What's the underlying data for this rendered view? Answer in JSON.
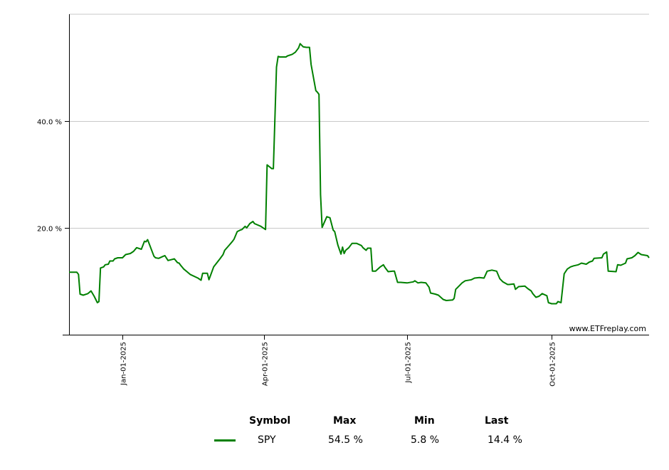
{
  "chart_data": {
    "type": "line",
    "title": "",
    "xlabel": "",
    "ylabel": "",
    "ylim": [
      0,
      60
    ],
    "xlim": [
      "2024-11-28",
      "2025-12-02"
    ],
    "grid": true,
    "y_ticks": [
      {
        "value": 20,
        "label": "20.0 %"
      },
      {
        "value": 40,
        "label": "40.0 %"
      }
    ],
    "x_ticks": [
      {
        "date": "2025-01-01",
        "label": "Jan-01-2025"
      },
      {
        "date": "2025-04-01",
        "label": "Apr-01-2025"
      },
      {
        "date": "2025-07-01",
        "label": "Jul-01-2025"
      },
      {
        "date": "2025-10-01",
        "label": "Oct-01-2025"
      }
    ],
    "watermark": "www.ETFreplay.com",
    "series": [
      {
        "name": "SPY",
        "color": "#008000",
        "points": [
          [
            "2024-11-28",
            11.7
          ],
          [
            "2024-12-03",
            11.7
          ],
          [
            "2024-12-04",
            11.3
          ],
          [
            "2024-12-05",
            7.6
          ],
          [
            "2024-12-07",
            7.4
          ],
          [
            "2024-12-10",
            7.7
          ],
          [
            "2024-12-12",
            8.2
          ],
          [
            "2024-12-14",
            7.2
          ],
          [
            "2024-12-16",
            6.0
          ],
          [
            "2024-12-17",
            6.2
          ],
          [
            "2024-12-18",
            12.5
          ],
          [
            "2024-12-20",
            12.7
          ],
          [
            "2024-12-21",
            13.1
          ],
          [
            "2024-12-23",
            13.2
          ],
          [
            "2024-12-24",
            13.8
          ],
          [
            "2024-12-26",
            13.8
          ],
          [
            "2024-12-27",
            14.2
          ],
          [
            "2024-12-29",
            14.4
          ],
          [
            "2025-01-01",
            14.4
          ],
          [
            "2025-01-03",
            15.0
          ],
          [
            "2025-01-06",
            15.2
          ],
          [
            "2025-01-08",
            15.6
          ],
          [
            "2025-01-10",
            16.3
          ],
          [
            "2025-01-13",
            16.0
          ],
          [
            "2025-01-15",
            17.5
          ],
          [
            "2025-01-16",
            17.4
          ],
          [
            "2025-01-17",
            17.8
          ],
          [
            "2025-01-21",
            14.7
          ],
          [
            "2025-01-22",
            14.4
          ],
          [
            "2025-01-24",
            14.3
          ],
          [
            "2025-01-27",
            14.7
          ],
          [
            "2025-01-28",
            14.8
          ],
          [
            "2025-01-30",
            13.9
          ],
          [
            "2025-02-03",
            14.2
          ],
          [
            "2025-02-05",
            13.5
          ],
          [
            "2025-02-06",
            13.4
          ],
          [
            "2025-02-07",
            13.0
          ],
          [
            "2025-02-09",
            12.3
          ],
          [
            "2025-02-11",
            11.8
          ],
          [
            "2025-02-13",
            11.3
          ],
          [
            "2025-02-18",
            10.6
          ],
          [
            "2025-02-20",
            10.2
          ],
          [
            "2025-02-21",
            11.5
          ],
          [
            "2025-02-24",
            11.5
          ],
          [
            "2025-02-25",
            10.3
          ],
          [
            "2025-02-28",
            12.7
          ],
          [
            "2025-03-04",
            14.2
          ],
          [
            "2025-03-06",
            15.0
          ],
          [
            "2025-03-07",
            15.8
          ],
          [
            "2025-03-10",
            16.8
          ],
          [
            "2025-03-12",
            17.5
          ],
          [
            "2025-03-13",
            17.9
          ],
          [
            "2025-03-15",
            19.3
          ],
          [
            "2025-03-17",
            19.6
          ],
          [
            "2025-03-18",
            19.7
          ],
          [
            "2025-03-20",
            20.3
          ],
          [
            "2025-03-21",
            20.0
          ],
          [
            "2025-03-23",
            20.8
          ],
          [
            "2025-03-25",
            21.2
          ],
          [
            "2025-03-26",
            20.8
          ],
          [
            "2025-03-30",
            20.3
          ],
          [
            "2025-04-02",
            19.7
          ],
          [
            "2025-04-03",
            31.8
          ],
          [
            "2025-04-06",
            31.1
          ],
          [
            "2025-04-07",
            31.1
          ],
          [
            "2025-04-09",
            50.1
          ],
          [
            "2025-04-10",
            52.1
          ],
          [
            "2025-04-11",
            52.0
          ],
          [
            "2025-04-14",
            52.0
          ],
          [
            "2025-04-15",
            52.0
          ],
          [
            "2025-04-16",
            52.2
          ],
          [
            "2025-04-19",
            52.5
          ],
          [
            "2025-04-21",
            52.9
          ],
          [
            "2025-04-23",
            53.7
          ],
          [
            "2025-04-24",
            54.5
          ],
          [
            "2025-04-26",
            53.9
          ],
          [
            "2025-04-28",
            53.8
          ],
          [
            "2025-04-30",
            53.8
          ],
          [
            "2025-05-01",
            50.6
          ],
          [
            "2025-05-04",
            45.7
          ],
          [
            "2025-05-05",
            45.4
          ],
          [
            "2025-05-06",
            45.0
          ],
          [
            "2025-05-07",
            26.2
          ],
          [
            "2025-05-08",
            20.1
          ],
          [
            "2025-05-11",
            22.1
          ],
          [
            "2025-05-13",
            21.9
          ],
          [
            "2025-05-15",
            19.6
          ],
          [
            "2025-05-16",
            19.3
          ],
          [
            "2025-05-18",
            16.8
          ],
          [
            "2025-05-20",
            15.1
          ],
          [
            "2025-05-21",
            16.4
          ],
          [
            "2025-05-22",
            15.2
          ],
          [
            "2025-05-23",
            15.8
          ],
          [
            "2025-05-25",
            16.3
          ],
          [
            "2025-05-27",
            17.1
          ],
          [
            "2025-05-30",
            17.1
          ],
          [
            "2025-06-02",
            16.7
          ],
          [
            "2025-06-03",
            16.3
          ],
          [
            "2025-06-05",
            15.8
          ],
          [
            "2025-06-06",
            16.2
          ],
          [
            "2025-06-08",
            16.2
          ],
          [
            "2025-06-09",
            11.9
          ],
          [
            "2025-06-11",
            11.9
          ],
          [
            "2025-06-14",
            12.7
          ],
          [
            "2025-06-16",
            13.1
          ],
          [
            "2025-06-17",
            12.6
          ],
          [
            "2025-06-19",
            11.8
          ],
          [
            "2025-06-22",
            11.9
          ],
          [
            "2025-06-23",
            11.9
          ],
          [
            "2025-06-25",
            9.8
          ],
          [
            "2025-06-27",
            9.8
          ],
          [
            "2025-07-01",
            9.7
          ],
          [
            "2025-07-05",
            9.9
          ],
          [
            "2025-07-06",
            10.1
          ],
          [
            "2025-07-08",
            9.7
          ],
          [
            "2025-07-10",
            9.8
          ],
          [
            "2025-07-13",
            9.7
          ],
          [
            "2025-07-15",
            8.9
          ],
          [
            "2025-07-16",
            7.8
          ],
          [
            "2025-07-19",
            7.6
          ],
          [
            "2025-07-21",
            7.4
          ],
          [
            "2025-07-24",
            6.6
          ],
          [
            "2025-07-26",
            6.4
          ],
          [
            "2025-07-30",
            6.5
          ],
          [
            "2025-07-31",
            6.8
          ],
          [
            "2025-08-01",
            8.5
          ],
          [
            "2025-08-03",
            9.1
          ],
          [
            "2025-08-05",
            9.7
          ],
          [
            "2025-08-07",
            10.1
          ],
          [
            "2025-08-11",
            10.3
          ],
          [
            "2025-08-13",
            10.6
          ],
          [
            "2025-08-16",
            10.7
          ],
          [
            "2025-08-19",
            10.6
          ],
          [
            "2025-08-21",
            11.9
          ],
          [
            "2025-08-24",
            12.1
          ],
          [
            "2025-08-27",
            11.9
          ],
          [
            "2025-08-29",
            10.5
          ],
          [
            "2025-08-31",
            9.9
          ],
          [
            "2025-09-03",
            9.4
          ],
          [
            "2025-09-04",
            9.4
          ],
          [
            "2025-09-07",
            9.5
          ],
          [
            "2025-09-08",
            8.5
          ],
          [
            "2025-09-10",
            9.0
          ],
          [
            "2025-09-14",
            9.1
          ],
          [
            "2025-09-16",
            8.6
          ],
          [
            "2025-09-18",
            8.2
          ],
          [
            "2025-09-19",
            7.7
          ],
          [
            "2025-09-21",
            7.0
          ],
          [
            "2025-09-23",
            7.2
          ],
          [
            "2025-09-25",
            7.7
          ],
          [
            "2025-09-28",
            7.3
          ],
          [
            "2025-09-29",
            6.0
          ],
          [
            "2025-10-01",
            5.8
          ],
          [
            "2025-10-04",
            5.8
          ],
          [
            "2025-10-05",
            6.2
          ],
          [
            "2025-10-07",
            6.0
          ],
          [
            "2025-10-09",
            11.4
          ],
          [
            "2025-10-11",
            12.3
          ],
          [
            "2025-10-13",
            12.7
          ],
          [
            "2025-10-15",
            12.9
          ],
          [
            "2025-10-18",
            13.1
          ],
          [
            "2025-10-20",
            13.4
          ],
          [
            "2025-10-23",
            13.2
          ],
          [
            "2025-10-25",
            13.6
          ],
          [
            "2025-10-27",
            13.8
          ],
          [
            "2025-10-28",
            14.3
          ],
          [
            "2025-11-02",
            14.4
          ],
          [
            "2025-11-03",
            15.1
          ],
          [
            "2025-11-05",
            15.5
          ],
          [
            "2025-11-06",
            11.9
          ],
          [
            "2025-11-11",
            11.8
          ],
          [
            "2025-11-12",
            13.1
          ],
          [
            "2025-11-14",
            13.0
          ],
          [
            "2025-11-17",
            13.4
          ],
          [
            "2025-11-18",
            14.2
          ],
          [
            "2025-11-21",
            14.4
          ],
          [
            "2025-11-23",
            14.8
          ],
          [
            "2025-11-25",
            15.4
          ],
          [
            "2025-11-27",
            15.0
          ],
          [
            "2025-12-01",
            14.8
          ],
          [
            "2025-12-02",
            14.4
          ]
        ]
      }
    ],
    "legend": {
      "placement": "bottom",
      "headers": {
        "symbol": "Symbol",
        "max": "Max",
        "min": "Min",
        "last": "Last"
      },
      "rows": [
        {
          "symbol": "SPY",
          "max": "54.5 %",
          "min": "5.8 %",
          "last": "14.4 %"
        }
      ]
    }
  }
}
